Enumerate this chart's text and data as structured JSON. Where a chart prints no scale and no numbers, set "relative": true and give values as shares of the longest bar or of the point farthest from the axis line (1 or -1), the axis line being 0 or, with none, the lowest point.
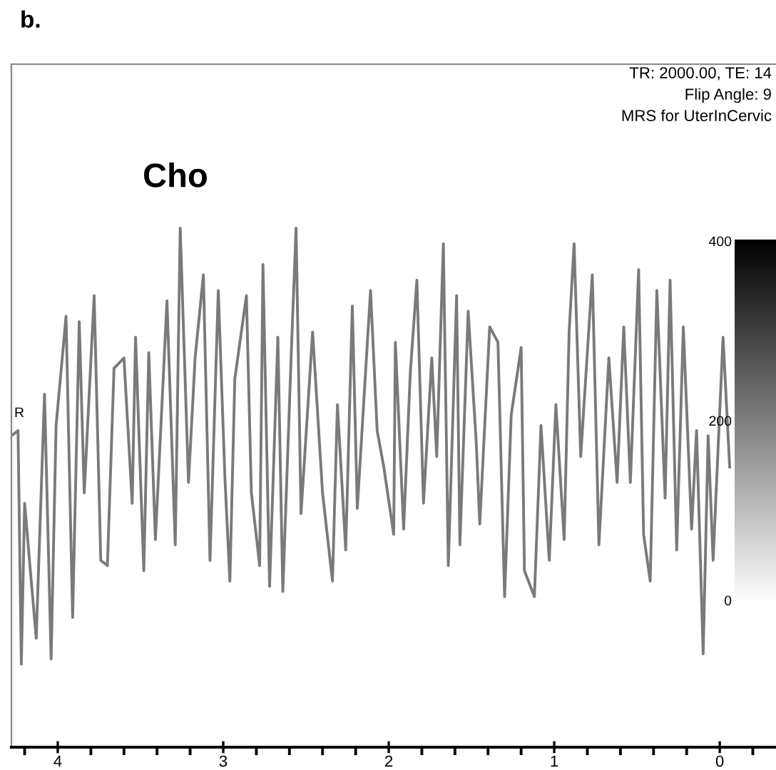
{
  "chart_data": {
    "type": "line",
    "title": "b.",
    "relative": true,
    "annotations": [
      "TR: 2000.00, TE: 14",
      "Flip Angle: 9",
      "MRS for UterInCervic",
      "Cho",
      "R",
      "400",
      "200",
      "0"
    ],
    "xlim": [
      4.28,
      -0.34
    ],
    "xticks": [
      4,
      {
        "value": 4.2,
        "label": null
      },
      {
        "value": 3.8,
        "label": null
      },
      {
        "value": 3.6,
        "label": null
      },
      {
        "value": 3.4,
        "label": null
      },
      {
        "value": 3.2,
        "label": null
      },
      3,
      {
        "value": 2.8,
        "label": null
      },
      {
        "value": 2.6,
        "label": null
      },
      {
        "value": 2.4,
        "label": null
      },
      {
        "value": 2.2,
        "label": null
      },
      2,
      {
        "value": 1.8,
        "label": null
      },
      {
        "value": 1.6,
        "label": null
      },
      {
        "value": 1.4,
        "label": null
      },
      {
        "value": 1.2,
        "label": null
      },
      1,
      {
        "value": 0.8,
        "label": null
      },
      {
        "value": 0.6,
        "label": null
      },
      {
        "value": 0.4,
        "label": null
      },
      {
        "value": 0.2,
        "label": null
      },
      0,
      {
        "value": -0.2,
        "label": null
      }
    ],
    "x": [
      4.28,
      4.24,
      4.22,
      4.2,
      4.16,
      4.13,
      4.11,
      4.08,
      4.04,
      4.01,
      3.95,
      3.91,
      3.87,
      3.84,
      3.78,
      3.74,
      3.7,
      3.66,
      3.6,
      3.55,
      3.53,
      3.48,
      3.45,
      3.41,
      3.34,
      3.29,
      3.26,
      3.21,
      3.17,
      3.12,
      3.08,
      3.03,
      2.99,
      2.96,
      2.93,
      2.86,
      2.83,
      2.78,
      2.76,
      2.72,
      2.67,
      2.64,
      2.59,
      2.56,
      2.53,
      2.46,
      2.4,
      2.34,
      2.31,
      2.26,
      2.22,
      2.19,
      2.11,
      2.07,
      2.03,
      1.97,
      1.96,
      1.91,
      1.87,
      1.83,
      1.79,
      1.74,
      1.71,
      1.67,
      1.64,
      1.59,
      1.57,
      1.52,
      1.47,
      1.45,
      1.39,
      1.34,
      1.3,
      1.26,
      1.2,
      1.18,
      1.12,
      1.08,
      1.03,
      0.99,
      0.94,
      0.91,
      0.88,
      0.84,
      0.77,
      0.73,
      0.67,
      0.62,
      0.58,
      0.54,
      0.49,
      0.46,
      0.42,
      0.38,
      0.33,
      0.3,
      0.26,
      0.22,
      0.17,
      0.14,
      0.1,
      0.07,
      0.04,
      -0.02,
      -0.06
    ],
    "series": [
      {
        "color": "#7a7a7a",
        "values": [
          0.6,
          0.61,
          0.16,
          0.47,
          0.32,
          0.21,
          0.4,
          0.68,
          0.17,
          0.62,
          0.83,
          0.25,
          0.82,
          0.49,
          0.87,
          0.36,
          0.35,
          0.73,
          0.75,
          0.47,
          0.79,
          0.34,
          0.76,
          0.4,
          0.86,
          0.39,
          1,
          0.51,
          0.75,
          0.91,
          0.36,
          0.88,
          0.52,
          0.32,
          0.71,
          0.87,
          0.49,
          0.35,
          0.93,
          0.31,
          0.79,
          0.3,
          0.75,
          1,
          0.45,
          0.8,
          0.49,
          0.32,
          0.66,
          0.38,
          0.85,
          0.46,
          0.88,
          0.61,
          0.54,
          0.41,
          0.78,
          0.42,
          0.72,
          0.9,
          0.47,
          0.75,
          0.56,
          0.97,
          0.35,
          0.87,
          0.39,
          0.84,
          0.58,
          0.43,
          0.81,
          0.78,
          0.29,
          0.64,
          0.77,
          0.34,
          0.29,
          0.62,
          0.36,
          0.66,
          0.4,
          0.8,
          0.97,
          0.56,
          0.91,
          0.39,
          0.75,
          0.51,
          0.81,
          0.51,
          0.92,
          0.41,
          0.32,
          0.88,
          0.48,
          0.9,
          0.38,
          0.81,
          0.42,
          0.61,
          0.18,
          0.6,
          0.36,
          0.79,
          0.54
        ]
      }
    ]
  }
}
